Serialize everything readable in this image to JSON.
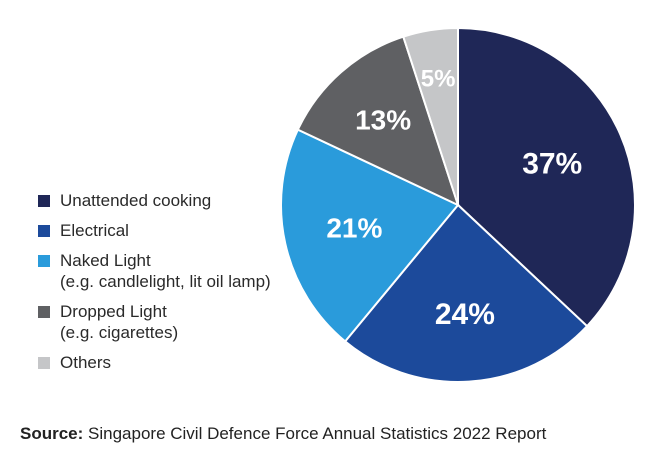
{
  "chart_data": {
    "type": "pie",
    "categories": [
      "Unattended cooking",
      "Electrical",
      "Naked Light",
      "Dropped Light",
      "Others"
    ],
    "category_notes": [
      "",
      "",
      "(e.g. candlelight, lit oil lamp)",
      "(e.g. cigarettes)",
      ""
    ],
    "values": [
      37,
      24,
      21,
      13,
      5
    ],
    "data_labels": [
      "37%",
      "24%",
      "21%",
      "13%",
      "5%"
    ],
    "colors": [
      "#1f2757",
      "#1c4a9b",
      "#2a9bdb",
      "#5f6063",
      "#c5c6c8"
    ],
    "start": "top (12 o'clock), clockwise",
    "legend_position": "left"
  },
  "source": {
    "label": "Source:",
    "text": " Singapore Civil Defence Force Annual Statistics 2022 Report"
  }
}
